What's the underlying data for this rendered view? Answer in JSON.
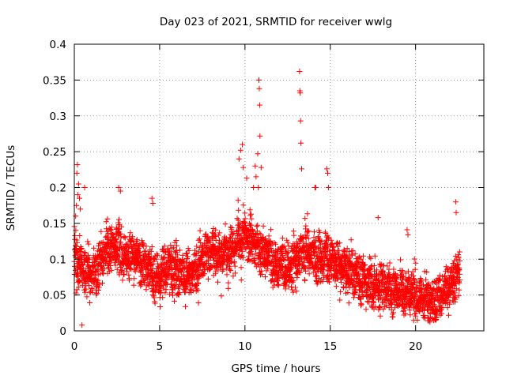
{
  "chart_data": {
    "type": "scatter",
    "title": "Day 023 of 2021, SRMTID for receiver wwlg",
    "xlabel": "GPS time / hours",
    "ylabel": "SRMTID / TECUs",
    "xlim": [
      0,
      24
    ],
    "ylim": [
      0,
      0.4
    ],
    "xticks": [
      0,
      5,
      10,
      15,
      20
    ],
    "xtick_labels": [
      "0",
      "5",
      "10",
      "15",
      "20"
    ],
    "yticks": [
      0,
      0.05,
      0.1,
      0.15,
      0.2,
      0.25,
      0.3,
      0.35,
      0.4
    ],
    "ytick_labels": [
      "0",
      "0.05",
      "0.1",
      "0.15",
      "0.2",
      "0.25",
      "0.3",
      "0.35",
      "0.4"
    ],
    "grid": true,
    "marker": "+",
    "color": "#ff0000",
    "time_range_hours": [
      0,
      22.6
    ],
    "sample_step_hours": 0.0167,
    "baseline_profile": [
      [
        0.0,
        0.1
      ],
      [
        0.5,
        0.09
      ],
      [
        1.0,
        0.075
      ],
      [
        1.5,
        0.095
      ],
      [
        2.0,
        0.115
      ],
      [
        2.5,
        0.12
      ],
      [
        3.0,
        0.1
      ],
      [
        3.5,
        0.105
      ],
      [
        4.0,
        0.095
      ],
      [
        4.5,
        0.08
      ],
      [
        5.0,
        0.075
      ],
      [
        5.5,
        0.09
      ],
      [
        6.0,
        0.085
      ],
      [
        6.5,
        0.075
      ],
      [
        7.0,
        0.08
      ],
      [
        7.5,
        0.1
      ],
      [
        8.0,
        0.11
      ],
      [
        8.5,
        0.105
      ],
      [
        9.0,
        0.11
      ],
      [
        9.5,
        0.12
      ],
      [
        10.0,
        0.135
      ],
      [
        10.5,
        0.12
      ],
      [
        11.0,
        0.11
      ],
      [
        11.5,
        0.1
      ],
      [
        12.0,
        0.09
      ],
      [
        12.5,
        0.085
      ],
      [
        13.0,
        0.1
      ],
      [
        13.5,
        0.115
      ],
      [
        14.0,
        0.105
      ],
      [
        14.5,
        0.1
      ],
      [
        15.0,
        0.105
      ],
      [
        15.5,
        0.09
      ],
      [
        16.0,
        0.085
      ],
      [
        16.5,
        0.08
      ],
      [
        17.0,
        0.07
      ],
      [
        17.5,
        0.06
      ],
      [
        18.0,
        0.06
      ],
      [
        18.5,
        0.06
      ],
      [
        19.0,
        0.055
      ],
      [
        19.5,
        0.055
      ],
      [
        20.0,
        0.05
      ],
      [
        20.5,
        0.045
      ],
      [
        21.0,
        0.04
      ],
      [
        21.5,
        0.05
      ],
      [
        22.0,
        0.065
      ],
      [
        22.6,
        0.075
      ]
    ],
    "spread": 0.025,
    "spikes": [
      [
        0.08,
        0.16
      ],
      [
        0.12,
        0.175
      ],
      [
        0.15,
        0.22
      ],
      [
        0.18,
        0.232
      ],
      [
        0.2,
        0.19
      ],
      [
        0.25,
        0.205
      ],
      [
        0.3,
        0.185
      ],
      [
        0.35,
        0.17
      ],
      [
        0.45,
        0.008
      ],
      [
        0.6,
        0.2
      ],
      [
        2.6,
        0.2
      ],
      [
        2.7,
        0.195
      ],
      [
        4.55,
        0.185
      ],
      [
        4.6,
        0.178
      ],
      [
        9.6,
        0.182
      ],
      [
        9.65,
        0.24
      ],
      [
        9.75,
        0.252
      ],
      [
        9.85,
        0.26
      ],
      [
        9.9,
        0.228
      ],
      [
        10.1,
        0.213
      ],
      [
        10.5,
        0.2
      ],
      [
        10.6,
        0.23
      ],
      [
        10.65,
        0.215
      ],
      [
        10.75,
        0.247
      ],
      [
        10.78,
        0.2
      ],
      [
        10.82,
        0.35
      ],
      [
        10.84,
        0.338
      ],
      [
        10.86,
        0.315
      ],
      [
        10.88,
        0.272
      ],
      [
        10.95,
        0.228
      ],
      [
        13.2,
        0.362
      ],
      [
        13.22,
        0.335
      ],
      [
        13.24,
        0.332
      ],
      [
        13.26,
        0.293
      ],
      [
        13.28,
        0.262
      ],
      [
        13.32,
        0.226
      ],
      [
        14.1,
        0.2
      ],
      [
        14.15,
        0.2
      ],
      [
        14.8,
        0.226
      ],
      [
        14.85,
        0.22
      ],
      [
        14.9,
        0.2
      ],
      [
        17.8,
        0.158
      ],
      [
        19.5,
        0.141
      ],
      [
        19.55,
        0.134
      ],
      [
        22.35,
        0.18
      ],
      [
        22.38,
        0.165
      ]
    ]
  }
}
